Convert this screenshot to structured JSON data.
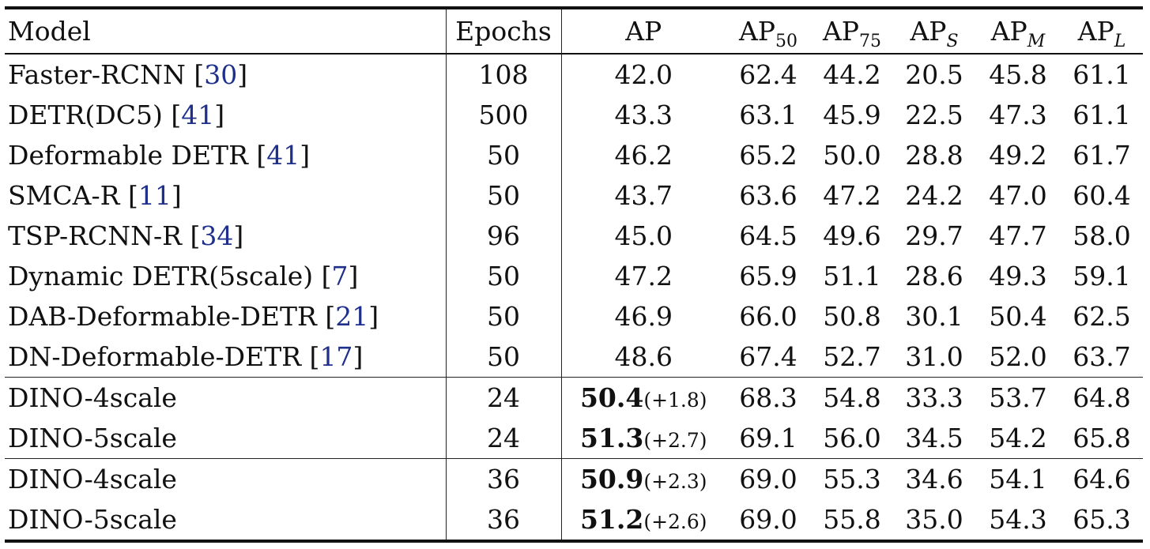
{
  "header": {
    "model": "Model",
    "epochs": "Epochs",
    "ap": "AP",
    "ap50": {
      "base": "AP",
      "sub": "50"
    },
    "ap75": {
      "base": "AP",
      "sub": "75"
    },
    "aps": {
      "base": "AP",
      "sub": "S"
    },
    "apm": {
      "base": "AP",
      "sub": "M"
    },
    "apl": {
      "base": "AP",
      "sub": "L"
    }
  },
  "baselines": [
    {
      "model": "Faster-RCNN",
      "cite": "30",
      "epochs": "108",
      "ap": "42.0",
      "ap50": "62.4",
      "ap75": "44.2",
      "aps": "20.5",
      "apm": "45.8",
      "apl": "61.1"
    },
    {
      "model": "DETR(DC5)",
      "cite": "41",
      "epochs": "500",
      "ap": "43.3",
      "ap50": "63.1",
      "ap75": "45.9",
      "aps": "22.5",
      "apm": "47.3",
      "apl": "61.1"
    },
    {
      "model": "Deformable DETR",
      "cite": "41",
      "epochs": "50",
      "ap": "46.2",
      "ap50": "65.2",
      "ap75": "50.0",
      "aps": "28.8",
      "apm": "49.2",
      "apl": "61.7"
    },
    {
      "model": "SMCA-R",
      "cite": "11",
      "epochs": "50",
      "ap": "43.7",
      "ap50": "63.6",
      "ap75": "47.2",
      "aps": "24.2",
      "apm": "47.0",
      "apl": "60.4"
    },
    {
      "model": "TSP-RCNN-R",
      "cite": "34",
      "epochs": "96",
      "ap": "45.0",
      "ap50": "64.5",
      "ap75": "49.6",
      "aps": "29.7",
      "apm": "47.7",
      "apl": "58.0"
    },
    {
      "model": "Dynamic DETR(5scale)",
      "cite": "7",
      "epochs": "50",
      "ap": "47.2",
      "ap50": "65.9",
      "ap75": "51.1",
      "aps": "28.6",
      "apm": "49.3",
      "apl": "59.1"
    },
    {
      "model": "DAB-Deformable-DETR",
      "cite": "21",
      "epochs": "50",
      "ap": "46.9",
      "ap50": "66.0",
      "ap75": "50.8",
      "aps": "30.1",
      "apm": "50.4",
      "apl": "62.5"
    },
    {
      "model": "DN-Deformable-DETR",
      "cite": "17",
      "epochs": "50",
      "ap": "48.6",
      "ap50": "67.4",
      "ap75": "52.7",
      "aps": "31.0",
      "apm": "52.0",
      "apl": "63.7"
    }
  ],
  "dino24": [
    {
      "model": "DINO-4scale",
      "epochs": "24",
      "ap": "50.4",
      "delta": "(+1.8)",
      "ap50": "68.3",
      "ap75": "54.8",
      "aps": "33.3",
      "apm": "53.7",
      "apl": "64.8"
    },
    {
      "model": "DINO-5scale",
      "epochs": "24",
      "ap": "51.3",
      "delta": "(+2.7)",
      "ap50": "69.1",
      "ap75": "56.0",
      "aps": "34.5",
      "apm": "54.2",
      "apl": "65.8"
    }
  ],
  "dino36": [
    {
      "model": "DINO-4scale",
      "epochs": "36",
      "ap": "50.9",
      "delta": "(+2.3)",
      "ap50": "69.0",
      "ap75": "55.3",
      "aps": "34.6",
      "apm": "54.1",
      "apl": "64.6"
    },
    {
      "model": "DINO-5scale",
      "epochs": "36",
      "ap": "51.2",
      "delta": "(+2.6)",
      "ap50": "69.0",
      "ap75": "55.8",
      "aps": "35.0",
      "apm": "54.3",
      "apl": "65.3"
    }
  ]
}
